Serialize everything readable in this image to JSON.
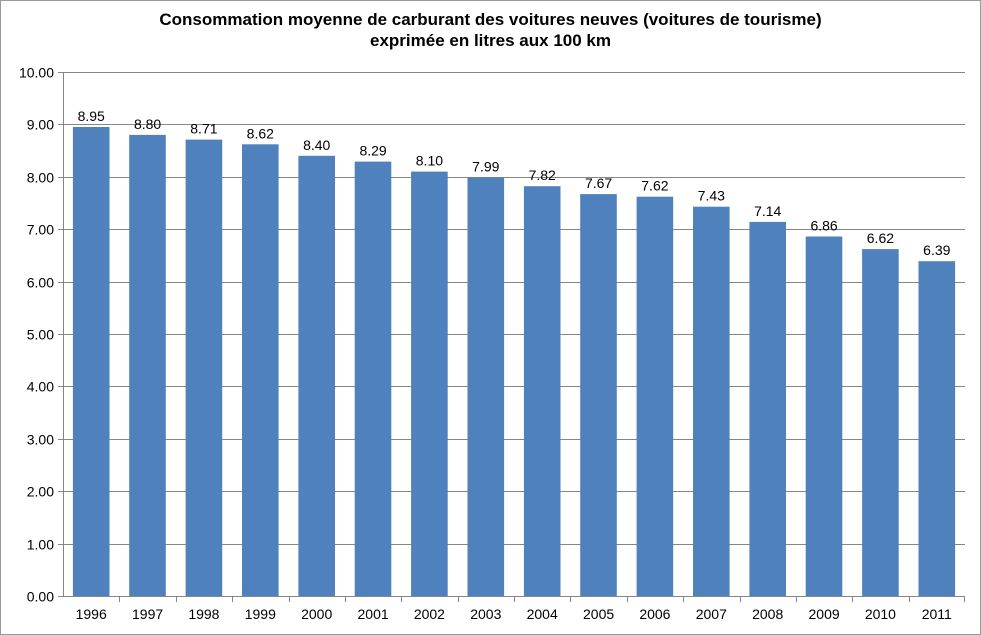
{
  "chart_data": {
    "type": "bar",
    "title_lines": [
      "Consommation moyenne de carburant des voitures neuves (voitures de tourisme)",
      "exprimée en litres aux 100 km"
    ],
    "categories": [
      "1996",
      "1997",
      "1998",
      "1999",
      "2000",
      "2001",
      "2002",
      "2003",
      "2004",
      "2005",
      "2006",
      "2007",
      "2008",
      "2009",
      "2010",
      "2011"
    ],
    "values": [
      8.95,
      8.8,
      8.71,
      8.62,
      8.4,
      8.29,
      8.1,
      7.99,
      7.82,
      7.67,
      7.62,
      7.43,
      7.14,
      6.86,
      6.62,
      6.39
    ],
    "data_labels": [
      "8.95",
      "8.80",
      "8.71",
      "8.62",
      "8.40",
      "8.29",
      "8.10",
      "7.99",
      "7.82",
      "7.67",
      "7.62",
      "7.43",
      "7.14",
      "6.86",
      "6.62",
      "6.39"
    ],
    "y_ticks": [
      "0.00",
      "1.00",
      "2.00",
      "3.00",
      "4.00",
      "5.00",
      "6.00",
      "7.00",
      "8.00",
      "9.00",
      "10.00"
    ],
    "ylim": [
      0,
      10
    ],
    "xlabel": "",
    "ylabel": "",
    "grid": true,
    "legend": "none",
    "bar_color": "#4F81BD",
    "grid_color": "#868686"
  }
}
